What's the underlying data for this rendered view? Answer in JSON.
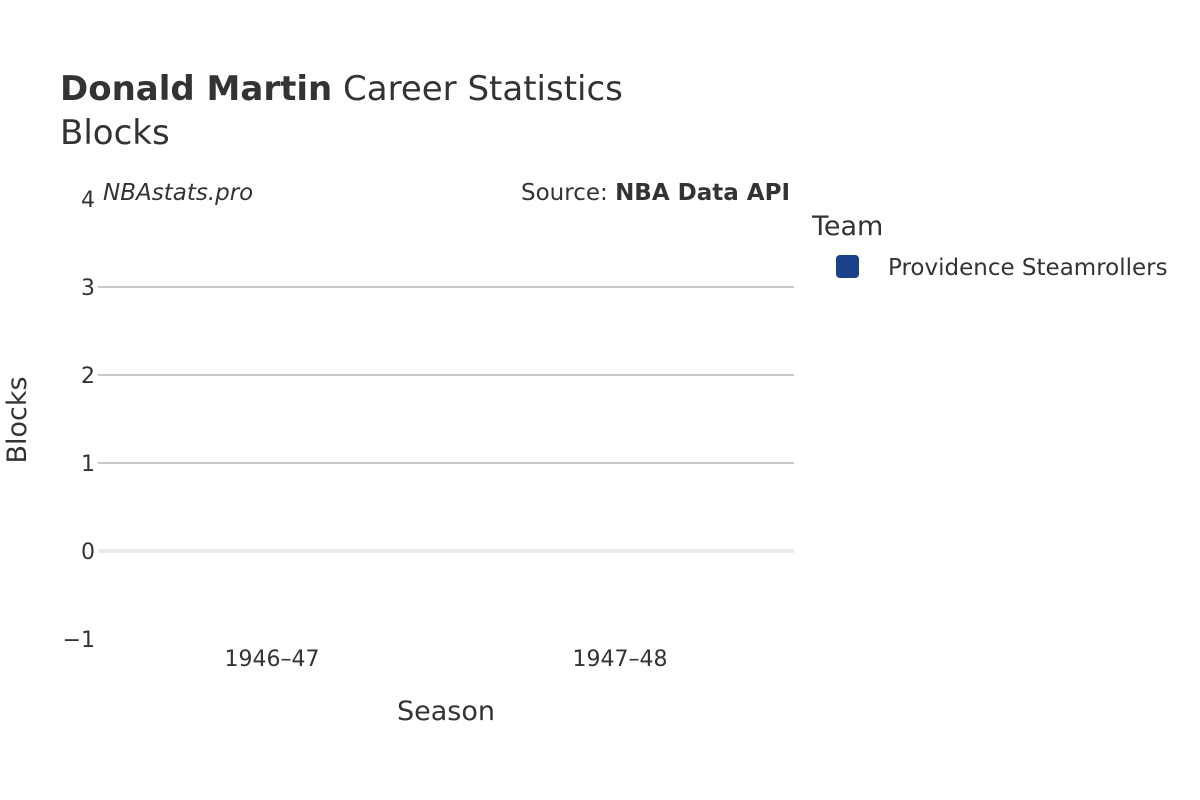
{
  "chart_data": {
    "type": "bar",
    "title": {
      "player": "Donald Martin",
      "rest": "Career Statistics",
      "subtitle": "Blocks"
    },
    "watermark": "NBAstats.pro",
    "source": {
      "prefix": "Source: ",
      "name": "NBA Data API"
    },
    "categories": [
      "1946–47",
      "1947–48"
    ],
    "series": [
      {
        "name": "Providence Steamrollers",
        "color": "#1b4189",
        "values": [
          null,
          null
        ]
      }
    ],
    "xlabel": "Season",
    "ylabel": "Blocks",
    "ylim": [
      -1,
      4
    ],
    "yticks": [
      -1,
      0,
      1,
      2,
      3,
      4
    ],
    "ytick_labels": [
      "−1",
      "0",
      "1",
      "2",
      "3",
      "4"
    ],
    "grid": true,
    "legend": {
      "title": "Team",
      "position": "right"
    }
  }
}
